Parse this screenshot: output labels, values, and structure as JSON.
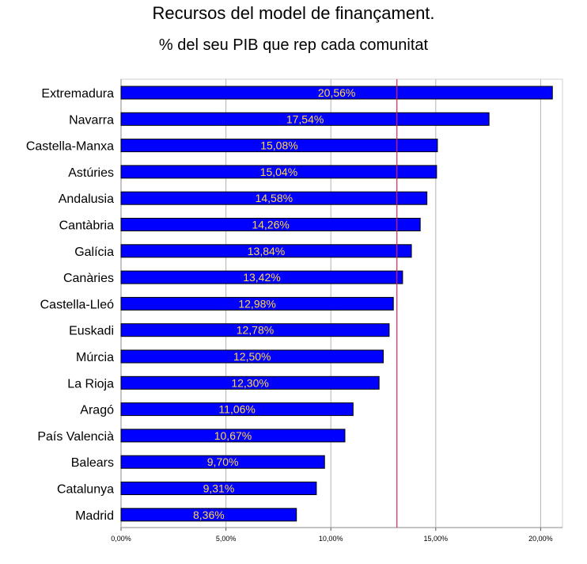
{
  "chart_data": {
    "type": "bar",
    "orientation": "horizontal",
    "title": "Recursos del model de finançament.",
    "subtitle": "% del seu PIB que rep cada comunitat",
    "categories": [
      "Extremadura",
      "Navarra",
      "Castella-Manxa",
      "Astúries",
      "Andalusia",
      "Cantàbria",
      "Galícia",
      "Canàries",
      "Castella-Lleó",
      "Euskadi",
      "Múrcia",
      "La Rioja",
      "Aragó",
      "País Valencià",
      "Balears",
      "Catalunya",
      "Madrid"
    ],
    "values": [
      20.56,
      17.54,
      15.08,
      15.04,
      14.58,
      14.26,
      13.84,
      13.42,
      12.98,
      12.78,
      12.5,
      12.3,
      11.06,
      10.67,
      9.7,
      9.31,
      8.36
    ],
    "value_labels": [
      "20,56%",
      "17,54%",
      "15,08%",
      "15,04%",
      "14,58%",
      "14,26%",
      "13,84%",
      "13,42%",
      "12,98%",
      "12,78%",
      "12,50%",
      "12,30%",
      "11,06%",
      "10,67%",
      "9,70%",
      "9,31%",
      "8,36%"
    ],
    "xlim": [
      0,
      21
    ],
    "x_ticks": [
      0,
      5,
      10,
      15,
      20
    ],
    "x_tick_labels": [
      "0,00%",
      "5,00%",
      "10,00%",
      "15,00%",
      "20,00%"
    ],
    "reference_line": 13.15,
    "grid": true,
    "legend": "none",
    "colors": {
      "bar": "#0000ff",
      "bar_edge": "#000000",
      "value_label": "#ffd84a",
      "grid": "#b3b3b3",
      "reference_line": "#e0205a"
    }
  }
}
